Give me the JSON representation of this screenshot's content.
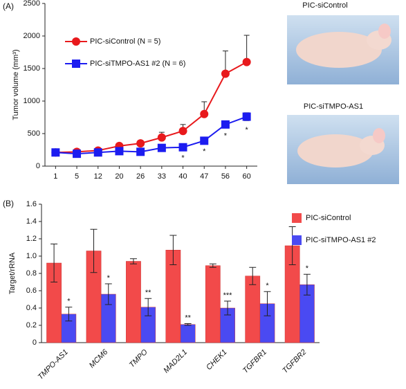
{
  "chart_data": [
    {
      "type": "line",
      "panel": "(A)",
      "y_label": "Tumor volume (mm³)",
      "categories": [
        "1",
        "5",
        "12",
        "20",
        "26",
        "33",
        "40",
        "47",
        "56",
        "60"
      ],
      "ylim": [
        0,
        2500
      ],
      "yticks": [
        0,
        500,
        1000,
        1500,
        2000,
        2500
      ],
      "series": [
        {
          "name": "PIC-siControl  (N = 5)",
          "color": "#e8191c",
          "marker": "circle",
          "values": [
            210,
            220,
            240,
            310,
            350,
            440,
            540,
            800,
            1420,
            1600
          ],
          "errors": [
            10,
            15,
            20,
            30,
            30,
            80,
            100,
            190,
            350,
            410
          ]
        },
        {
          "name": "PIC-siTMPO-AS1 #2 (N = 6)",
          "color": "#1c1cf0",
          "marker": "square",
          "values": [
            210,
            190,
            210,
            230,
            220,
            280,
            290,
            390,
            640,
            760
          ],
          "errors": [
            20,
            20,
            20,
            20,
            15,
            20,
            20,
            20,
            30,
            60
          ]
        }
      ],
      "significance": [
        null,
        null,
        null,
        null,
        null,
        null,
        "*",
        "*",
        "*",
        "*"
      ],
      "photo_captions": [
        "PIC-siControl",
        "PIC-siTMPO-AS1"
      ]
    },
    {
      "type": "bar",
      "panel": "(B)",
      "y_label": "Target/rRNA",
      "categories": [
        "TMPO-AS1",
        "MCM6",
        "TMPO",
        "MAD2L1",
        "CHEK1",
        "TGFBR1",
        "TGFBR2"
      ],
      "ylim": [
        0,
        1.6
      ],
      "yticks": [
        0,
        0.2,
        0.4,
        0.6,
        0.8,
        {
          "value": 1,
          "label": "1.0"
        },
        1.2,
        1.4,
        1.6
      ],
      "series": [
        {
          "name": "PIC-siControl",
          "color": "#f24a4a",
          "values": [
            0.92,
            1.06,
            0.94,
            1.07,
            0.89,
            0.77,
            1.12
          ],
          "errors": [
            0.22,
            0.25,
            0.03,
            0.17,
            0.02,
            0.1,
            0.22
          ]
        },
        {
          "name": "PIC-siTMPO-AS1 #2",
          "color": "#4a4af2",
          "values": [
            0.33,
            0.56,
            0.41,
            0.21,
            0.4,
            0.45,
            0.67
          ],
          "errors": [
            0.08,
            0.12,
            0.1,
            0.01,
            0.08,
            0.14,
            0.12
          ]
        }
      ],
      "significance": [
        "*",
        "*",
        "**",
        "**",
        "***",
        "*",
        "*"
      ]
    }
  ]
}
